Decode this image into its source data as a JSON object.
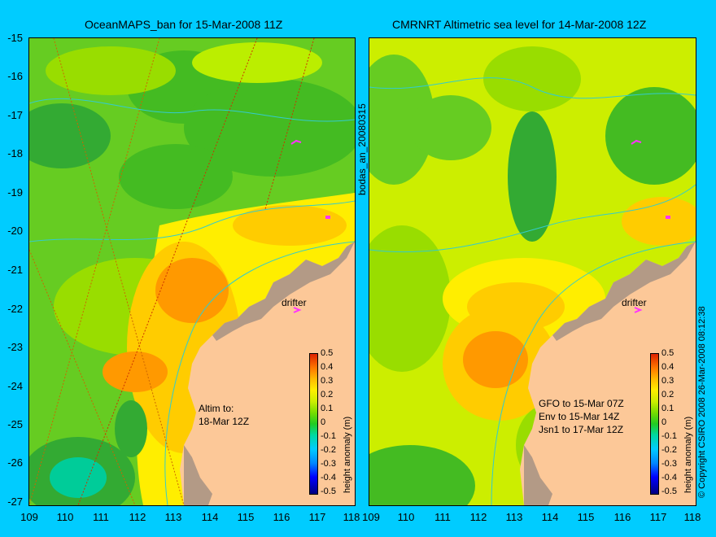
{
  "left_panel": {
    "title": "OceanMAPS_ban for 15-Mar-2008 11Z",
    "note": "Altim to:\n18-Mar 12Z",
    "drifter_label": "drifter",
    "colorbar_label": "height anomaly (m)"
  },
  "right_panel": {
    "title": "CMRNRT Altimetric sea level  for 14-Mar-2008 12Z",
    "note": "GFO to 15-Mar 07Z\nEnv to 15-Mar 14Z\nJsn1 to 17-Mar 12Z",
    "drifter_label": "drifter",
    "colorbar_label": "height anomaly (m)"
  },
  "center_label": "bodas_an_20080315",
  "copyright": "© Copyright CSIRO 2008   26-Mar-2008 08:12:38",
  "y_ticks": [
    "-15",
    "-16",
    "-17",
    "-18",
    "-19",
    "-20",
    "-21",
    "-22",
    "-23",
    "-24",
    "-25",
    "-26",
    "-27"
  ],
  "x_ticks": [
    "109",
    "110",
    "111",
    "112",
    "113",
    "114",
    "115",
    "116",
    "117",
    "118"
  ],
  "colorbar_ticks": [
    "0.5",
    "0.4",
    "0.3",
    "0.2",
    "0.1",
    "0",
    "-0.1",
    "-0.2",
    "-0.3",
    "-0.4",
    "-0.5"
  ],
  "colors": {
    "background": "#00ccff",
    "land": "#fcc898",
    "coast_shelf": "#b39a86",
    "drifter": "#ff33ff",
    "sea_green": "#44cc22",
    "sea_yellow": "#ffdd00",
    "sea_orange": "#ff9900"
  }
}
